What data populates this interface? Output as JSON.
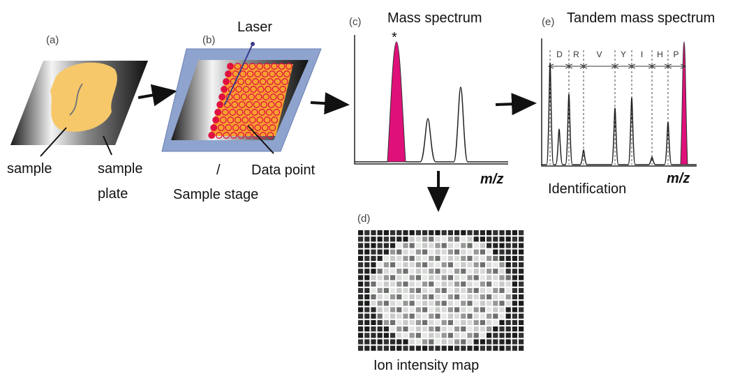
{
  "panel_a": {
    "label": "(a)",
    "sample_label": "sample",
    "plate_label": [
      "sample",
      "plate"
    ]
  },
  "panel_b": {
    "label": "(b)",
    "laser": "Laser",
    "data_point": "Data point",
    "slash": "/",
    "stage": "Sample stage"
  },
  "panel_c": {
    "label": "(c)",
    "title": "Mass spectrum",
    "star": "*",
    "axis": "m/z"
  },
  "panel_d": {
    "label": "(d)",
    "title": "Ion intensity map"
  },
  "panel_e": {
    "label": "(e)",
    "title": "Tandem mass spectrum",
    "residues": [
      "D",
      "R",
      "V",
      "Y",
      "I",
      "H",
      "P"
    ],
    "axis": "m/z",
    "caption": "Identification"
  }
}
